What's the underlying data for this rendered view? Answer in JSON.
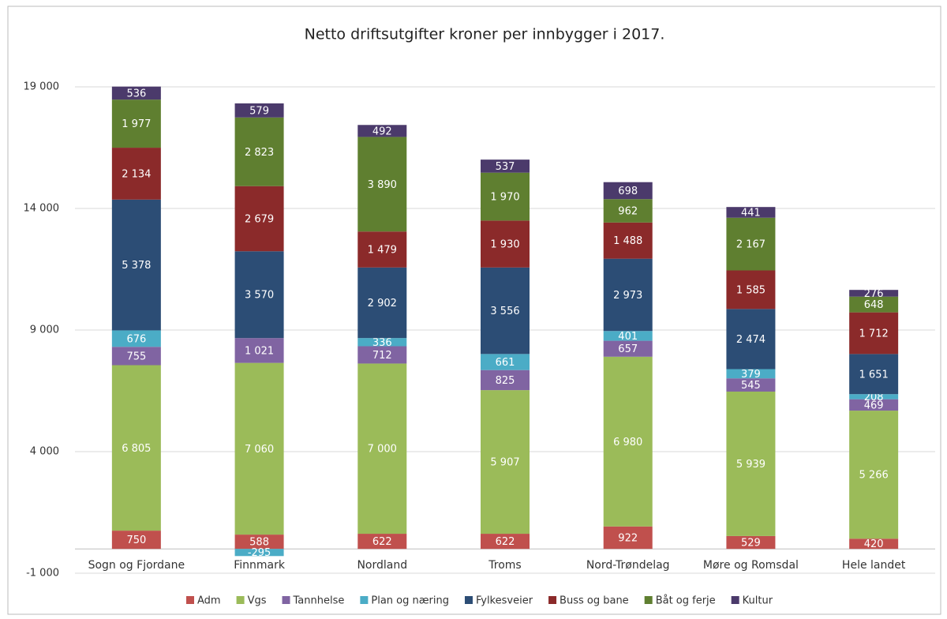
{
  "chart_data": {
    "type": "stacked_bar",
    "title": "Netto driftsutgifter kroner per innbygger i 2017.",
    "categories": [
      "Sogn og Fjordane",
      "Finnmark",
      "Nordland",
      "Troms",
      "Nord-Trøndelag",
      "Møre og Romsdal",
      "Hele landet"
    ],
    "series": [
      {
        "name": "Adm",
        "color": "#c0504d",
        "values": [
          750,
          588,
          622,
          622,
          922,
          529,
          420
        ]
      },
      {
        "name": "Vgs",
        "color": "#9bbb59",
        "values": [
          6805,
          7060,
          7000,
          5907,
          6980,
          5939,
          5266
        ],
        "value_labels": [
          "6 805",
          "7 060",
          "7 000",
          "5 907",
          "6 980",
          "5 939",
          "5 266"
        ]
      },
      {
        "name": "Tannhelse",
        "color": "#8064a2",
        "values": [
          755,
          1021,
          712,
          825,
          657,
          545,
          469
        ],
        "value_labels": [
          "755",
          "1 021",
          "712",
          "825",
          "657",
          "545",
          "469"
        ]
      },
      {
        "name": "Plan og næring",
        "color": "#4bacc6",
        "values": [
          676,
          -295,
          336,
          661,
          401,
          379,
          208
        ]
      },
      {
        "name": "Fylkesveier",
        "color": "#2c4d75",
        "values": [
          5378,
          3570,
          2902,
          3556,
          2973,
          2474,
          1651
        ],
        "value_labels": [
          "5 378",
          "3 570",
          "2 902",
          "3 556",
          "2 973",
          "2 474",
          "1 651"
        ]
      },
      {
        "name": "Buss og bane",
        "color": "#8b2a2a",
        "values": [
          2134,
          2679,
          1479,
          1930,
          1488,
          1585,
          1712
        ],
        "value_labels": [
          "2 134",
          "2 679",
          "1 479",
          "1 930",
          "1 488",
          "1 585",
          "1 712"
        ]
      },
      {
        "name": "Båt og ferje",
        "color": "#5f7f30",
        "values": [
          1977,
          2823,
          3890,
          1970,
          962,
          2167,
          648
        ],
        "value_labels": [
          "1 977",
          "2 823",
          "3 890",
          "1 970",
          "962",
          "2 167",
          "648"
        ]
      },
      {
        "name": "Kultur",
        "color": "#4b3a6b",
        "values": [
          536,
          579,
          492,
          537,
          698,
          441,
          276
        ]
      }
    ],
    "ylim": [
      -1000,
      19000
    ],
    "yticks": [
      {
        "value": -1000,
        "label": "-1 000"
      },
      {
        "value": 4000,
        "label": "4 000"
      },
      {
        "value": 9000,
        "label": "9 000"
      },
      {
        "value": 14000,
        "label": "14 000"
      },
      {
        "value": 19000,
        "label": "19 000"
      }
    ],
    "grid": true,
    "legend": "bottom"
  }
}
